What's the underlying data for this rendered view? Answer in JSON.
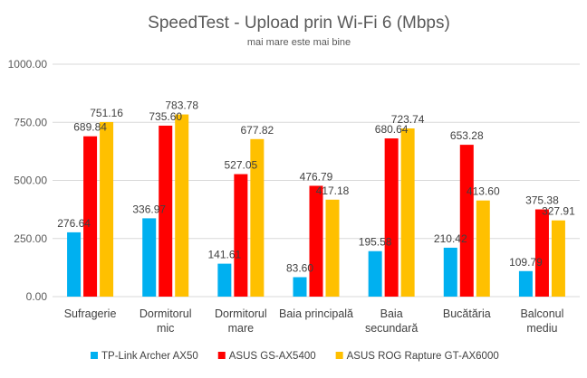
{
  "chart_data": {
    "type": "bar",
    "title": "SpeedTest - Upload prin Wi-Fi 6 (Mbps)",
    "subtitle": "mai mare este mai bine",
    "categories": [
      [
        "Sufragerie"
      ],
      [
        "Dormitorul",
        "mic"
      ],
      [
        "Dormitorul",
        "mare"
      ],
      [
        "Baia principală"
      ],
      [
        "Baia",
        "secundară"
      ],
      [
        "Bucătăria"
      ],
      [
        "Balconul",
        "mediu"
      ]
    ],
    "series": [
      {
        "name": "TP-Link Archer AX50",
        "color": "#00B0F0",
        "values": [
          276.64,
          336.97,
          141.61,
          83.6,
          195.58,
          210.42,
          109.79
        ]
      },
      {
        "name": "ASUS GS-AX5400",
        "color": "#FF0000",
        "values": [
          689.84,
          735.6,
          527.05,
          476.79,
          680.64,
          653.28,
          375.38
        ]
      },
      {
        "name": "ASUS ROG Rapture GT-AX6000",
        "color": "#FFC000",
        "values": [
          751.16,
          783.78,
          677.82,
          417.18,
          723.74,
          413.6,
          327.91
        ]
      }
    ],
    "ylim": [
      0,
      1000
    ],
    "yticks": [
      "0.00",
      "250.00",
      "500.00",
      "750.00",
      "1000.00"
    ],
    "ytick_values": [
      0,
      250,
      500,
      750,
      1000
    ],
    "grid": true,
    "legend_position": "bottom"
  }
}
